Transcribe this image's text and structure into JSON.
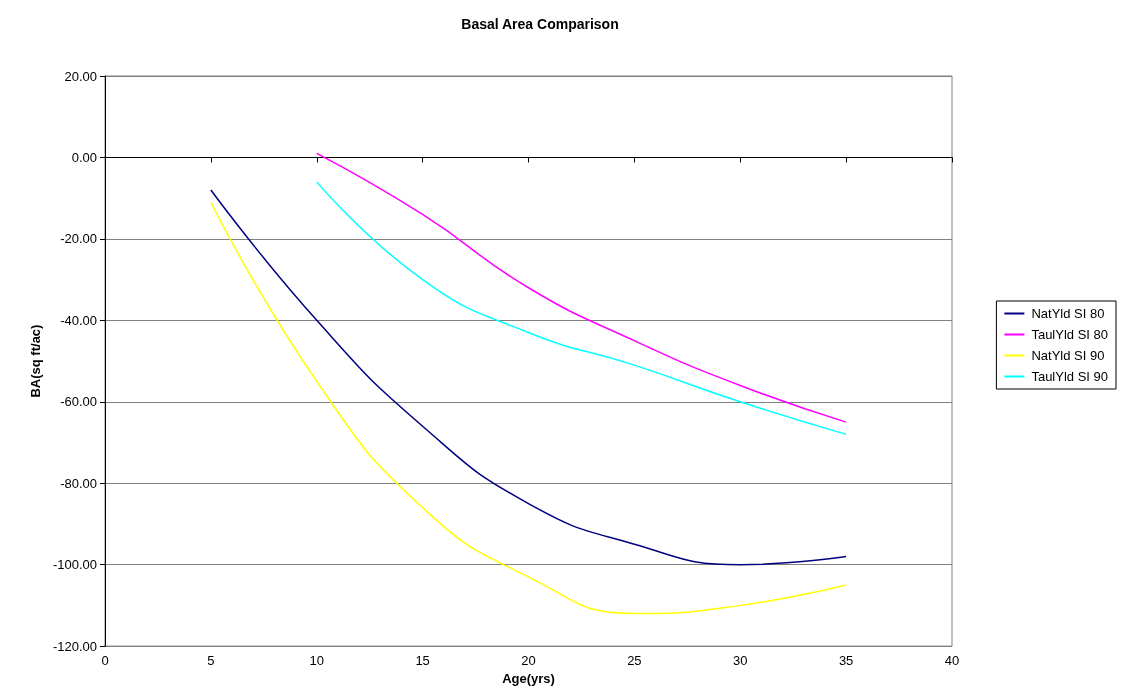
{
  "chart_data": {
    "type": "line",
    "title": "Basal Area Comparison",
    "xlabel": "Age(yrs)",
    "ylabel": "BA(sq ft/ac)",
    "x": [
      5,
      10,
      15,
      20,
      25,
      30,
      35
    ],
    "series": [
      {
        "name": "NatYld SI 80",
        "color": "#000080",
        "values": [
          -8,
          -40,
          -66,
          -85,
          -95,
          -100,
          -98
        ]
      },
      {
        "name": "TaulYld SI 80",
        "color": "#ff00ff",
        "values": [
          null,
          1,
          -14,
          -32,
          -45,
          -56,
          -65
        ]
      },
      {
        "name": "NatYld SI 90",
        "color": "#ffff00",
        "values": [
          -11,
          -55,
          -86,
          -103,
          -112,
          -110,
          -105
        ]
      },
      {
        "name": "TaulYld SI 90",
        "color": "#00ffff",
        "values": [
          null,
          -6,
          -30,
          -43,
          -51,
          -60,
          -68
        ]
      }
    ],
    "xlim": [
      0,
      40
    ],
    "xticks": [
      0,
      5,
      10,
      15,
      20,
      25,
      30,
      35,
      40
    ],
    "ylim": [
      -120,
      20
    ],
    "yticks": [
      {
        "value": -120,
        "label": "-120.00"
      },
      {
        "value": -100,
        "label": "-100.00"
      },
      {
        "value": -80,
        "label": "-80.00"
      },
      {
        "value": -60,
        "label": "-60.00"
      },
      {
        "value": -40,
        "label": "-40.00"
      },
      {
        "value": -20,
        "label": "-20.00"
      },
      {
        "value": 0,
        "label": "0.00"
      },
      {
        "value": 20,
        "label": "20.00"
      }
    ],
    "grid": "y",
    "legend": "right",
    "marker": "none",
    "line_style": "solid"
  }
}
